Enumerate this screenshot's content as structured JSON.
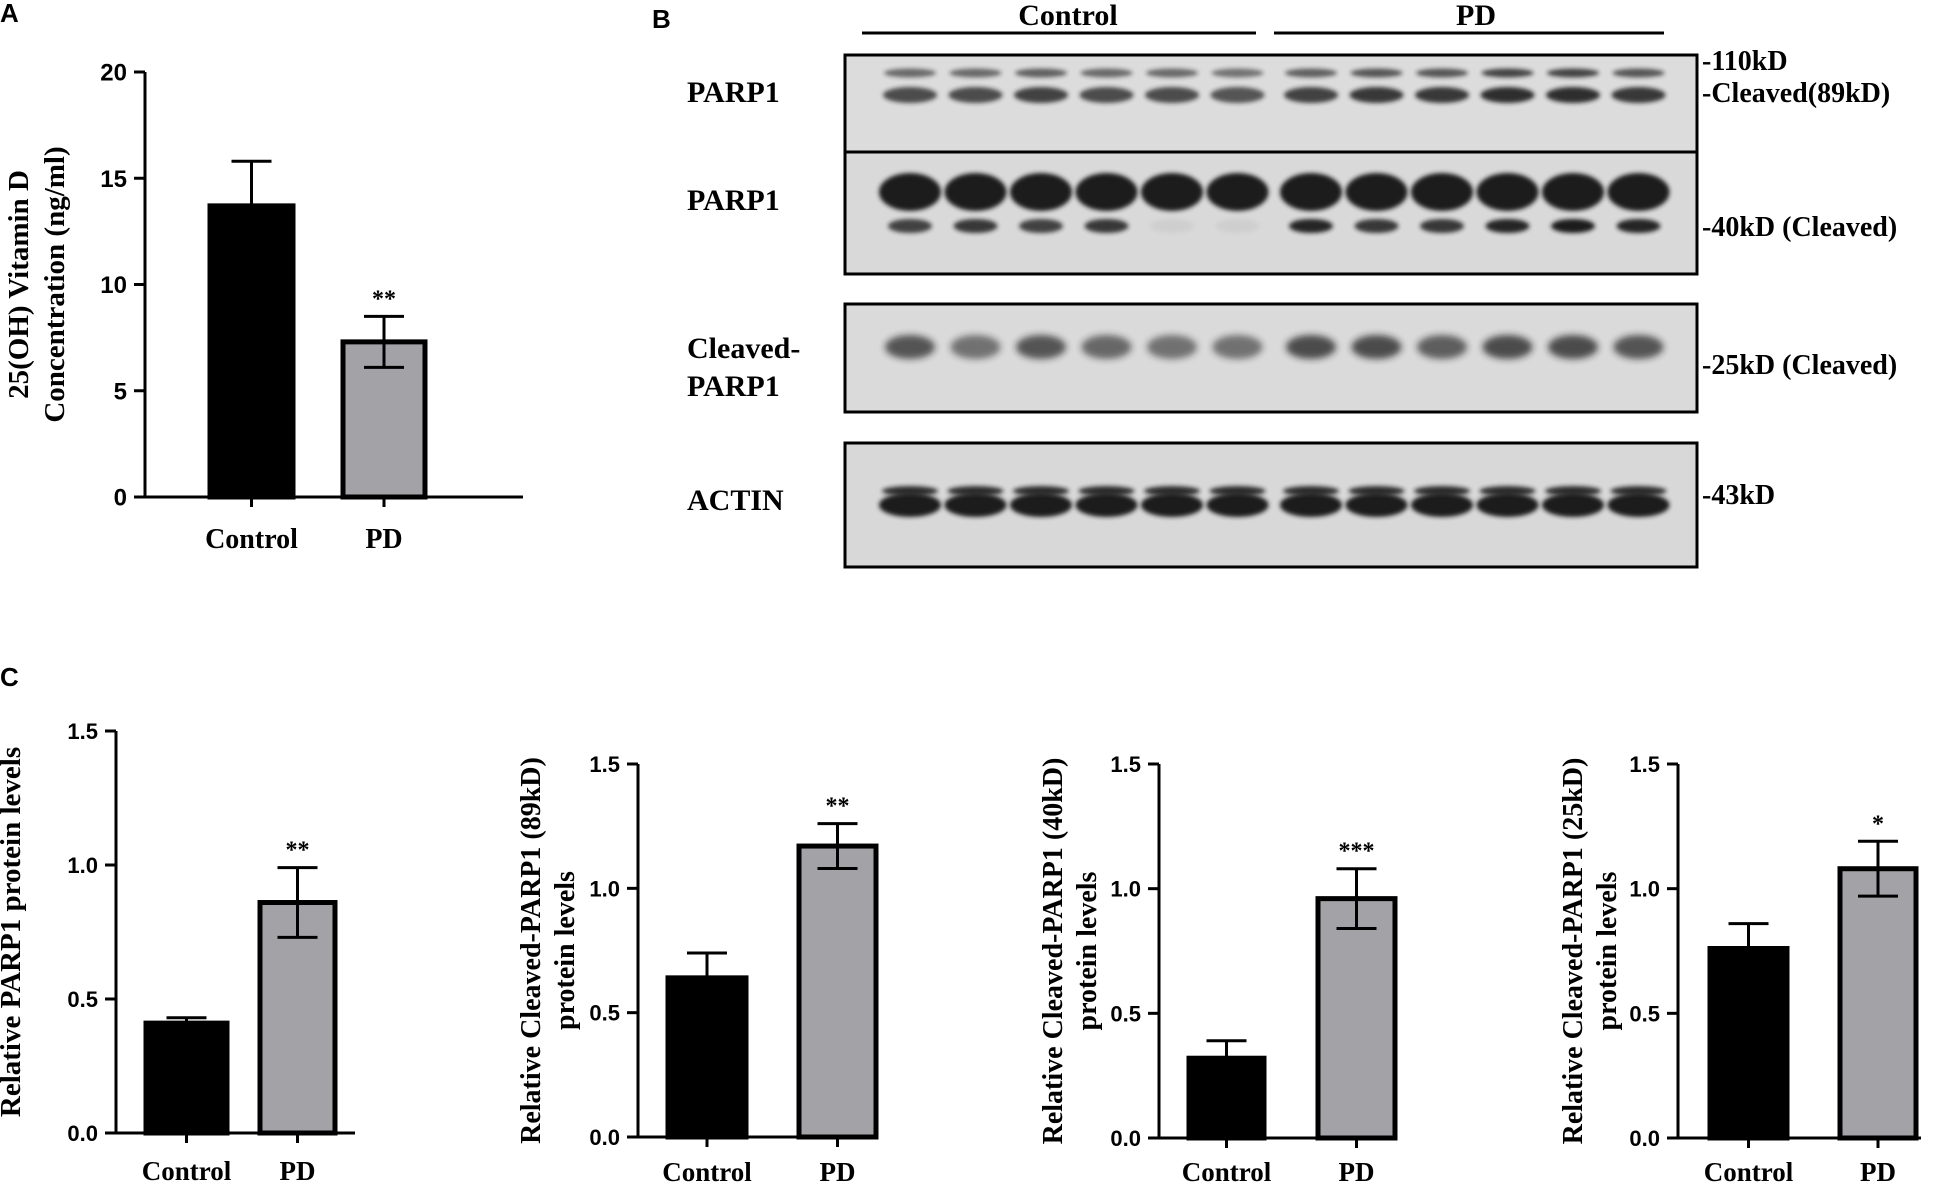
{
  "panel_labels": [
    "A",
    "B",
    "C"
  ],
  "colors": {
    "control": "#000000",
    "pd": "#a3a3a7",
    "blot_bg": "#d9d9d9",
    "band": "#1b1b1b"
  },
  "chart_data": [
    {
      "id": "A",
      "type": "bar",
      "categories": [
        "Control",
        "PD"
      ],
      "values": [
        13.7,
        7.3
      ],
      "errors": [
        2.1,
        1.2
      ],
      "significance": [
        "",
        "**"
      ],
      "ylabel_lines": [
        "25(OH) Vitamin D",
        "Concentration (ng/ml)"
      ],
      "ylim": [
        0,
        20
      ],
      "yticks": [
        0,
        5,
        10,
        15,
        20
      ],
      "ytick_labels": [
        "0",
        "5",
        "10",
        "15",
        "20"
      ],
      "grid": false
    },
    {
      "id": "C1",
      "type": "bar",
      "categories": [
        "Control",
        "PD"
      ],
      "values": [
        0.41,
        0.86
      ],
      "errors": [
        0.02,
        0.13
      ],
      "significance": [
        "",
        "**"
      ],
      "ylabel_lines": [
        "Relative PARP1 protein levels"
      ],
      "ylim": [
        0,
        1.5
      ],
      "yticks": [
        0,
        0.5,
        1.0,
        1.5
      ],
      "ytick_labels": [
        "0.0",
        "0.5",
        "1.0",
        "1.5"
      ],
      "grid": false
    },
    {
      "id": "C2",
      "type": "bar",
      "categories": [
        "Control",
        "PD"
      ],
      "values": [
        0.64,
        1.17
      ],
      "errors": [
        0.1,
        0.09
      ],
      "significance": [
        "",
        "**"
      ],
      "ylabel_lines": [
        "Relative Cleaved-PARP1 (89kD)",
        "protein levels"
      ],
      "ylim": [
        0,
        1.5
      ],
      "yticks": [
        0,
        0.5,
        1.0,
        1.5
      ],
      "ytick_labels": [
        "0.0",
        "0.5",
        "1.0",
        "1.5"
      ],
      "grid": false
    },
    {
      "id": "C3",
      "type": "bar",
      "categories": [
        "Control",
        "PD"
      ],
      "values": [
        0.32,
        0.96
      ],
      "errors": [
        0.07,
        0.12
      ],
      "significance": [
        "",
        "***"
      ],
      "ylabel_lines": [
        "Relative Cleaved-PARP1 (40kD)",
        "protein levels"
      ],
      "ylim": [
        0,
        1.5
      ],
      "yticks": [
        0,
        0.5,
        1.0,
        1.5
      ],
      "ytick_labels": [
        "0.0",
        "0.5",
        "1.0",
        "1.5"
      ],
      "grid": false
    },
    {
      "id": "C4",
      "type": "bar",
      "categories": [
        "Control",
        "PD"
      ],
      "values": [
        0.76,
        1.08
      ],
      "errors": [
        0.1,
        0.11
      ],
      "significance": [
        "",
        "*"
      ],
      "ylabel_lines": [
        "Relative Cleaved-PARP1 (25kD)",
        "protein levels"
      ],
      "ylim": [
        0,
        1.5
      ],
      "yticks": [
        0,
        0.5,
        1.0,
        1.5
      ],
      "ytick_labels": [
        "0.0",
        "0.5",
        "1.0",
        "1.5"
      ],
      "grid": false
    }
  ],
  "blot": {
    "groups": [
      "Control",
      "PD"
    ],
    "rows": [
      {
        "label_lines": [
          "PARP1"
        ],
        "markers": [
          "-110kD",
          "-Cleaved(89kD)"
        ]
      },
      {
        "label_lines": [
          "PARP1"
        ],
        "markers": [
          "-40kD (Cleaved)"
        ]
      },
      {
        "label_lines": [
          "Cleaved-",
          "PARP1"
        ],
        "markers": [
          "-25kD (Cleaved)"
        ]
      },
      {
        "label_lines": [
          "ACTIN"
        ],
        "markers": [
          "-43kD"
        ]
      }
    ]
  }
}
